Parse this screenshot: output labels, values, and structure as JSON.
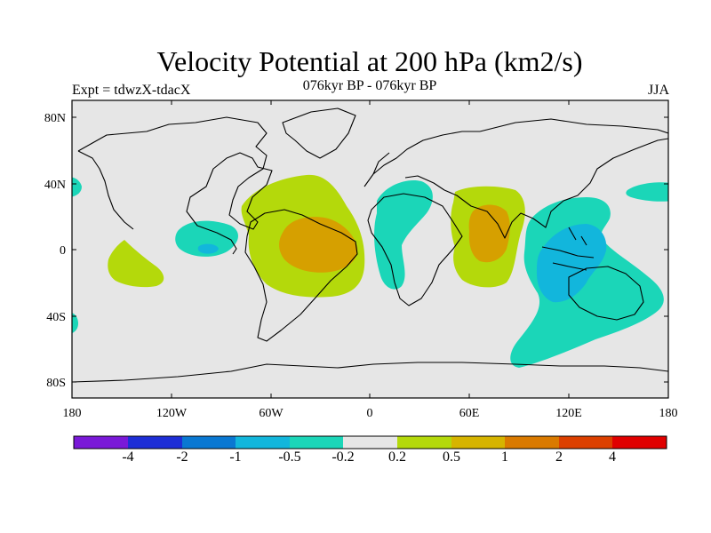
{
  "header": {
    "title": "Velocity Potential at 200 hPa (km2/s)",
    "subtitle": "076kyr BP - 076kyr BP",
    "experiment": "Expt = tdwzX-tdacX",
    "season": "JJA"
  },
  "axes": {
    "lat_ticks": [
      "80N",
      "40N",
      "0",
      "40S",
      "80S"
    ],
    "lon_ticks": [
      "180",
      "120W",
      "60W",
      "0",
      "60E",
      "120E",
      "180"
    ]
  },
  "colorbar": {
    "colors": [
      "#7a19d8",
      "#1e2ed6",
      "#0a78d2",
      "#12b6dc",
      "#1bd6b8",
      "#e6e6e6",
      "#b4d90b",
      "#d6b400",
      "#da7a00",
      "#dc4000",
      "#e00000"
    ],
    "labels": [
      "-4",
      "-2",
      "-1",
      "-0.5",
      "-0.2",
      "0.2",
      "0.5",
      "1",
      "2",
      "4"
    ]
  },
  "field_colors": {
    "ocean_background": "#e6e6e6",
    "positive_low": "#b4d90b",
    "positive_mid": "#d6a000",
    "negative_low": "#1bd6b8",
    "negative_mid": "#12b6dc"
  }
}
